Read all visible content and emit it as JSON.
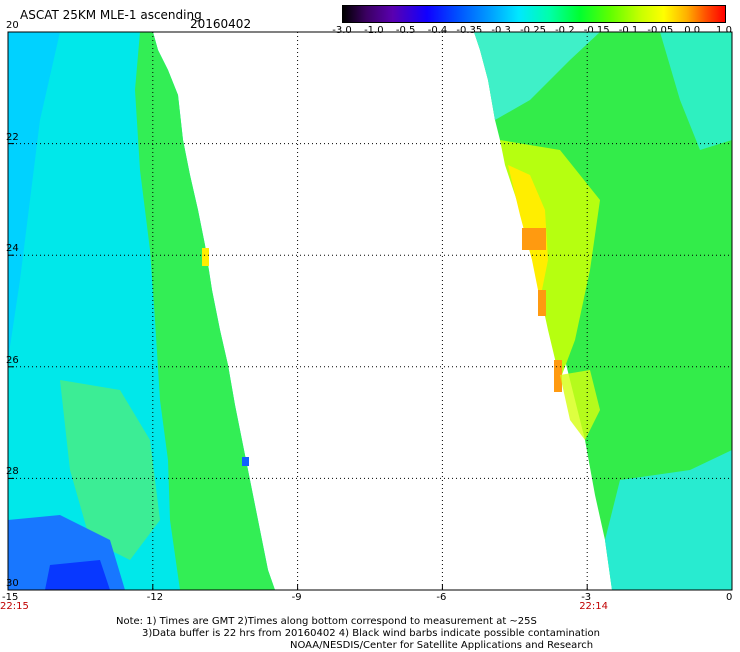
{
  "header": {
    "title": "ASCAT 25KM MLE-1 ascending",
    "date": "20160402"
  },
  "colorbar": {
    "labels": [
      "-3.0",
      "-1.0",
      "-0.5",
      "-0.4",
      "-0.35",
      "-0.3",
      "-0.25",
      "-0.2",
      "-0.15",
      "-0.1",
      "-0.05",
      "0.0",
      "1.0"
    ]
  },
  "map": {
    "lon_range": [
      -15,
      0
    ],
    "lat_range": [
      -30,
      -20
    ],
    "x_ticks": [
      "-15",
      "-12",
      "-9",
      "-6",
      "-3",
      "0"
    ],
    "y_ticks": [
      "20",
      "22",
      "24",
      "26",
      "28",
      "30"
    ],
    "times": [
      {
        "label": "22:15",
        "lon": -15
      },
      {
        "label": "22:14",
        "lon": -3
      }
    ],
    "colors": {
      "cyan": "#00e6ee",
      "light_blue": "#00ccff",
      "green": "#22ee44",
      "yellow_green": "#aaff00",
      "yellow": "#ffee00",
      "orange": "#ff9900",
      "blue": "#0040ff"
    }
  },
  "notes": {
    "line1": "Note: 1) Times are GMT 2)Times along bottom correspond to measurement at ~25S",
    "line2": "3)Data buffer is 22 hrs from 20160402 4) Black wind barbs indicate possible contamination",
    "line3": "NOAA/NESDIS/Center for Satellite Applications and Research"
  }
}
